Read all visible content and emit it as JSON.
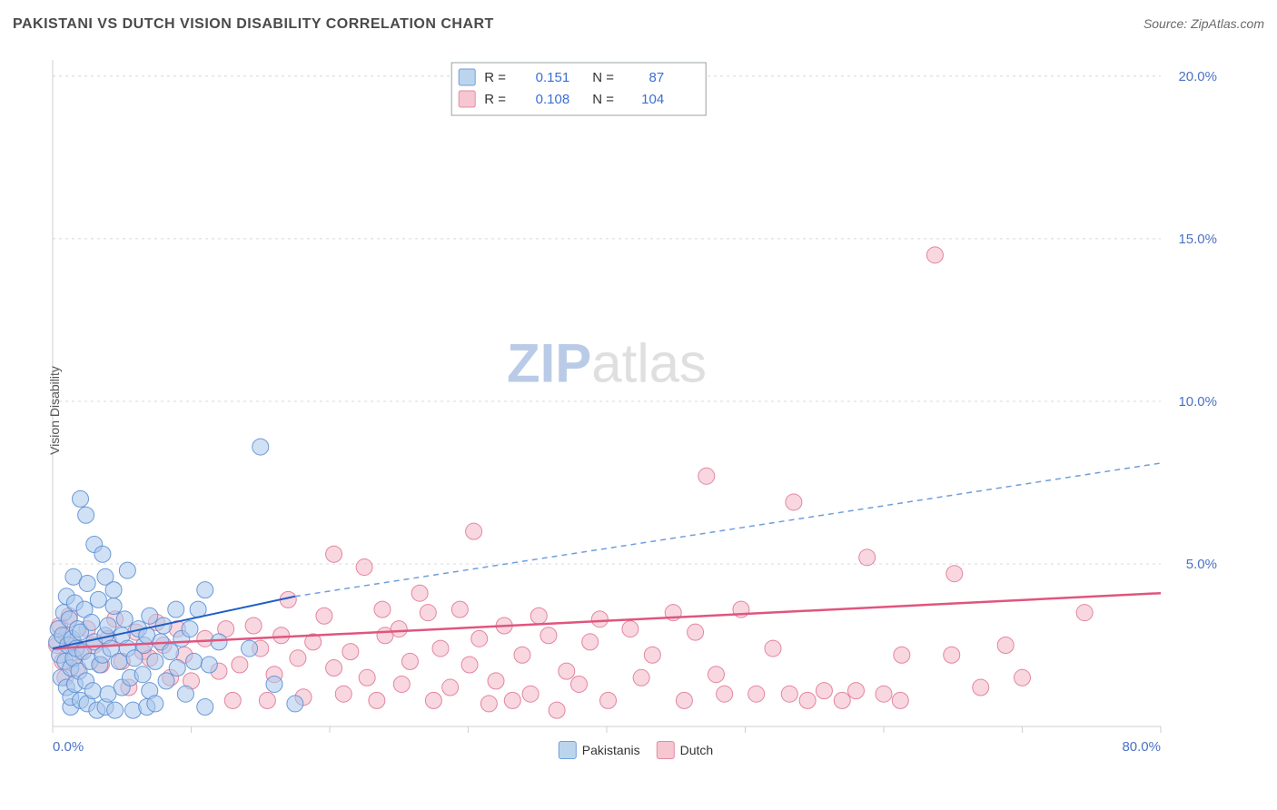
{
  "header": {
    "title": "PAKISTANI VS DUTCH VISION DISABILITY CORRELATION CHART",
    "source": "Source: ZipAtlas.com"
  },
  "axes": {
    "ylabel": "Vision Disability",
    "xlim": [
      0,
      80
    ],
    "ylim": [
      0,
      20.5
    ],
    "xtick_values": [
      0,
      10,
      20,
      30,
      40,
      50,
      60,
      70,
      80
    ],
    "xtick_labels": [
      "0.0%",
      "",
      "",
      "",
      "",
      "",
      "",
      "",
      "80.0%"
    ],
    "ytick_values": [
      5,
      10,
      15,
      20
    ],
    "ytick_labels": [
      "5.0%",
      "10.0%",
      "15.0%",
      "20.0%"
    ],
    "tick_color": "#4a72c4",
    "grid_color": "#d8d8d8",
    "axis_color": "#cfcfcf"
  },
  "watermark": {
    "text_bold": "ZIP",
    "text_light": "atlas",
    "color_bold": "#b9cbe6",
    "color_light": "#dfdfdf",
    "fontsize": 60
  },
  "stats_box": {
    "border_color": "#9aa0a6",
    "bg": "#ffffff",
    "label_color": "#333333",
    "value_color": "#3b6fd6",
    "rows": [
      {
        "swatch_fill": "#bcd5ef",
        "swatch_stroke": "#6f9edb",
        "R": "0.151",
        "N": "87"
      },
      {
        "swatch_fill": "#f6c6d1",
        "swatch_stroke": "#e58aa3",
        "R": "0.108",
        "N": "104"
      }
    ]
  },
  "series_bottom_legend": [
    {
      "label": "Pakistanis",
      "fill": "#bcd5ef",
      "stroke": "#6f9edb"
    },
    {
      "label": "Dutch",
      "fill": "#f6c6d1",
      "stroke": "#e58aa3"
    }
  ],
  "scatter": {
    "marker_radius": 9,
    "marker_opacity": 0.55,
    "pakistanis": {
      "fill": "#a9c9ec",
      "stroke": "#5d8fd3",
      "points": [
        [
          0.3,
          2.6
        ],
        [
          0.4,
          3.0
        ],
        [
          0.5,
          2.2
        ],
        [
          0.6,
          1.5
        ],
        [
          0.7,
          2.8
        ],
        [
          0.8,
          3.5
        ],
        [
          0.9,
          2.0
        ],
        [
          1.0,
          1.2
        ],
        [
          1.0,
          4.0
        ],
        [
          1.1,
          2.5
        ],
        [
          1.2,
          3.3
        ],
        [
          1.3,
          0.6
        ],
        [
          1.3,
          0.9
        ],
        [
          1.3,
          1.8
        ],
        [
          1.4,
          2.7
        ],
        [
          1.5,
          4.6
        ],
        [
          1.5,
          2.1
        ],
        [
          1.6,
          1.3
        ],
        [
          1.6,
          3.8
        ],
        [
          1.7,
          2.4
        ],
        [
          1.8,
          3.0
        ],
        [
          1.9,
          1.7
        ],
        [
          2.0,
          2.9
        ],
        [
          2.0,
          0.8
        ],
        [
          2.0,
          7.0
        ],
        [
          2.2,
          2.3
        ],
        [
          2.3,
          3.6
        ],
        [
          2.4,
          1.4
        ],
        [
          2.4,
          6.5
        ],
        [
          2.5,
          4.4
        ],
        [
          2.5,
          0.7
        ],
        [
          2.7,
          2.0
        ],
        [
          2.8,
          3.2
        ],
        [
          2.9,
          1.1
        ],
        [
          3.0,
          2.6
        ],
        [
          3.0,
          5.6
        ],
        [
          3.2,
          0.5
        ],
        [
          3.3,
          3.9
        ],
        [
          3.4,
          1.9
        ],
        [
          3.6,
          2.2
        ],
        [
          3.6,
          5.3
        ],
        [
          3.8,
          2.8
        ],
        [
          3.8,
          0.6
        ],
        [
          3.8,
          4.6
        ],
        [
          4.0,
          3.1
        ],
        [
          4.0,
          1.0
        ],
        [
          4.2,
          2.4
        ],
        [
          4.4,
          3.7
        ],
        [
          4.4,
          4.2
        ],
        [
          4.5,
          0.5
        ],
        [
          4.8,
          2.0
        ],
        [
          5.0,
          2.8
        ],
        [
          5.0,
          1.2
        ],
        [
          5.2,
          3.3
        ],
        [
          5.4,
          4.8
        ],
        [
          5.4,
          2.4
        ],
        [
          5.6,
          1.5
        ],
        [
          5.9,
          2.1
        ],
        [
          5.8,
          0.5
        ],
        [
          6.6,
          2.5
        ],
        [
          6.2,
          3.0
        ],
        [
          6.5,
          1.6
        ],
        [
          6.8,
          2.8
        ],
        [
          6.8,
          0.6
        ],
        [
          7.0,
          3.4
        ],
        [
          7.0,
          1.1
        ],
        [
          7.4,
          2.0
        ],
        [
          7.4,
          0.7
        ],
        [
          7.8,
          2.6
        ],
        [
          8.0,
          3.1
        ],
        [
          8.2,
          1.4
        ],
        [
          8.5,
          2.3
        ],
        [
          8.9,
          3.6
        ],
        [
          9.0,
          1.8
        ],
        [
          9.3,
          2.7
        ],
        [
          9.6,
          1.0
        ],
        [
          9.9,
          3.0
        ],
        [
          10.2,
          2.0
        ],
        [
          10.5,
          3.6
        ],
        [
          11.0,
          0.6
        ],
        [
          11.0,
          4.2
        ],
        [
          11.3,
          1.9
        ],
        [
          12.0,
          2.6
        ],
        [
          14.2,
          2.4
        ],
        [
          15.0,
          8.6
        ],
        [
          16.0,
          1.3
        ],
        [
          17.5,
          0.7
        ]
      ],
      "trend_solid": {
        "x1": 0,
        "y1": 2.4,
        "x2": 17.5,
        "y2": 4.0,
        "color": "#1f5fc4",
        "width": 2
      },
      "trend_dashed": {
        "x1": 17.5,
        "y1": 4.0,
        "x2": 80,
        "y2": 8.1,
        "color": "#6f9edb",
        "width": 1.5,
        "dash": "6,5"
      }
    },
    "dutch": {
      "fill": "#f3b7c6",
      "stroke": "#e17a97",
      "points": [
        [
          0.3,
          2.5
        ],
        [
          0.5,
          3.1
        ],
        [
          0.7,
          2.0
        ],
        [
          0.9,
          1.5
        ],
        [
          1.0,
          2.8
        ],
        [
          1.2,
          3.4
        ],
        [
          1.5,
          2.6
        ],
        [
          1.8,
          1.8
        ],
        [
          2.0,
          2.3
        ],
        [
          2.5,
          3.0
        ],
        [
          3.0,
          2.5
        ],
        [
          3.5,
          1.9
        ],
        [
          4.0,
          2.7
        ],
        [
          4.5,
          3.3
        ],
        [
          5.0,
          2.0
        ],
        [
          5.5,
          1.2
        ],
        [
          6.0,
          2.9
        ],
        [
          6.5,
          2.3
        ],
        [
          7.0,
          2.1
        ],
        [
          7.5,
          3.2
        ],
        [
          8.0,
          2.5
        ],
        [
          8.5,
          1.5
        ],
        [
          9.0,
          3.0
        ],
        [
          9.5,
          2.2
        ],
        [
          10.0,
          1.4
        ],
        [
          11.0,
          2.7
        ],
        [
          12.0,
          1.7
        ],
        [
          12.5,
          3.0
        ],
        [
          13.0,
          0.8
        ],
        [
          13.5,
          1.9
        ],
        [
          14.5,
          3.1
        ],
        [
          15.0,
          2.4
        ],
        [
          15.5,
          0.8
        ],
        [
          16.0,
          1.6
        ],
        [
          16.5,
          2.8
        ],
        [
          17.0,
          3.9
        ],
        [
          17.7,
          2.1
        ],
        [
          18.1,
          0.9
        ],
        [
          18.8,
          2.6
        ],
        [
          19.6,
          3.4
        ],
        [
          20.3,
          5.3
        ],
        [
          20.3,
          1.8
        ],
        [
          21.0,
          1.0
        ],
        [
          21.5,
          2.3
        ],
        [
          22.5,
          4.9
        ],
        [
          22.7,
          1.5
        ],
        [
          23.4,
          0.8
        ],
        [
          23.8,
          3.6
        ],
        [
          24.0,
          2.8
        ],
        [
          25.0,
          3.0
        ],
        [
          25.2,
          1.3
        ],
        [
          25.8,
          2.0
        ],
        [
          26.5,
          4.1
        ],
        [
          27.1,
          3.5
        ],
        [
          27.5,
          0.8
        ],
        [
          28.0,
          2.4
        ],
        [
          28.7,
          1.2
        ],
        [
          29.4,
          3.6
        ],
        [
          30.1,
          1.9
        ],
        [
          30.4,
          6.0
        ],
        [
          30.8,
          2.7
        ],
        [
          31.5,
          0.7
        ],
        [
          32.0,
          1.4
        ],
        [
          32.6,
          3.1
        ],
        [
          33.2,
          0.8
        ],
        [
          33.9,
          2.2
        ],
        [
          34.5,
          1.0
        ],
        [
          35.1,
          3.4
        ],
        [
          35.8,
          2.8
        ],
        [
          36.4,
          0.5
        ],
        [
          37.1,
          1.7
        ],
        [
          38.0,
          1.3
        ],
        [
          38.8,
          2.6
        ],
        [
          39.5,
          3.3
        ],
        [
          40.1,
          0.8
        ],
        [
          41.7,
          3.0
        ],
        [
          42.5,
          1.5
        ],
        [
          43.3,
          2.2
        ],
        [
          44.8,
          3.5
        ],
        [
          45.6,
          0.8
        ],
        [
          46.4,
          2.9
        ],
        [
          47.2,
          7.7
        ],
        [
          47.9,
          1.6
        ],
        [
          48.5,
          1.0
        ],
        [
          49.7,
          3.6
        ],
        [
          50.8,
          1.0
        ],
        [
          52.0,
          2.4
        ],
        [
          53.2,
          1.0
        ],
        [
          53.5,
          6.9
        ],
        [
          54.5,
          0.8
        ],
        [
          55.7,
          1.1
        ],
        [
          57.0,
          0.8
        ],
        [
          58.0,
          1.1
        ],
        [
          58.8,
          5.2
        ],
        [
          60.0,
          1.0
        ],
        [
          61.2,
          0.8
        ],
        [
          61.3,
          2.2
        ],
        [
          63.7,
          14.5
        ],
        [
          64.9,
          2.2
        ],
        [
          65.1,
          4.7
        ],
        [
          67.0,
          1.2
        ],
        [
          68.8,
          2.5
        ],
        [
          70.0,
          1.5
        ],
        [
          74.5,
          3.5
        ]
      ],
      "trend_solid": {
        "x1": 0,
        "y1": 2.4,
        "x2": 80,
        "y2": 4.1,
        "color": "#e0557e",
        "width": 2.5
      }
    }
  }
}
